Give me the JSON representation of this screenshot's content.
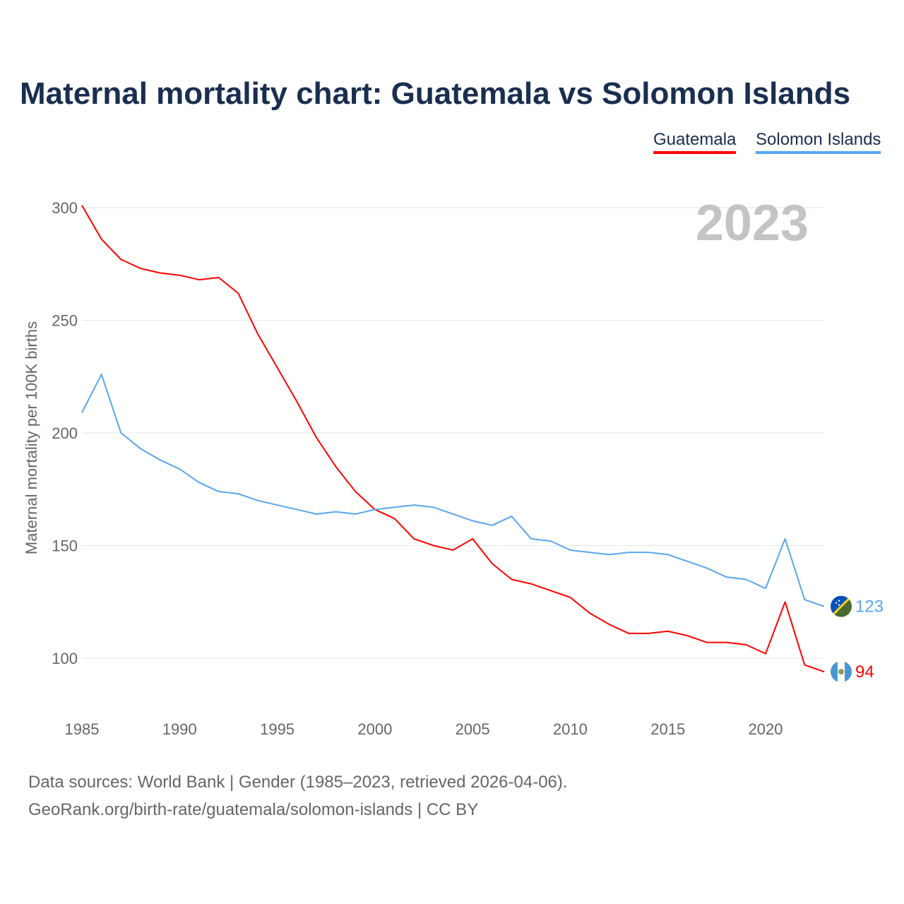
{
  "chart_data": {
    "type": "line",
    "title": "Maternal mortality chart: Guatemala vs Solomon Islands",
    "ylabel": "Maternal mortality per 100K births",
    "xlabel": "",
    "year_label": "2023",
    "ylim": [
      80,
      310
    ],
    "xlim": [
      1985,
      2023
    ],
    "yticks": [
      100,
      150,
      200,
      250,
      300
    ],
    "xticks": [
      1985,
      1990,
      1995,
      2000,
      2005,
      2010,
      2015,
      2020
    ],
    "grid": true,
    "legend": "top-right",
    "x": [
      1985,
      1986,
      1987,
      1988,
      1989,
      1990,
      1991,
      1992,
      1993,
      1994,
      1995,
      1996,
      1997,
      1998,
      1999,
      2000,
      2001,
      2002,
      2003,
      2004,
      2005,
      2006,
      2007,
      2008,
      2009,
      2010,
      2011,
      2012,
      2013,
      2014,
      2015,
      2016,
      2017,
      2018,
      2019,
      2020,
      2021,
      2022,
      2023
    ],
    "series": [
      {
        "name": "Guatemala",
        "color": "#ff0000",
        "end_label": "94",
        "flag": "guatemala-flag-icon",
        "values": [
          301,
          286,
          277,
          273,
          271,
          270,
          268,
          269,
          262,
          244,
          229,
          214,
          198,
          185,
          174,
          166,
          162,
          153,
          150,
          148,
          153,
          142,
          135,
          133,
          130,
          127,
          120,
          115,
          111,
          111,
          112,
          110,
          107,
          107,
          106,
          102,
          125,
          97,
          94
        ]
      },
      {
        "name": "Solomon Islands",
        "color": "#5aa5ee",
        "end_label": "123",
        "flag": "solomon-islands-flag-icon",
        "values": [
          209,
          226,
          200,
          193,
          188,
          184,
          178,
          174,
          173,
          170,
          168,
          166,
          164,
          165,
          164,
          166,
          167,
          168,
          167,
          164,
          161,
          159,
          163,
          153,
          152,
          148,
          147,
          146,
          147,
          147,
          146,
          143,
          140,
          136,
          135,
          131,
          153,
          126,
          123
        ]
      }
    ]
  },
  "footer": {
    "line1": "Data sources: World Bank | Gender (1985–2023, retrieved 2026-04-06).",
    "line2": "GeoRank.org/birth-rate/guatemala/solomon-islands | CC BY"
  }
}
